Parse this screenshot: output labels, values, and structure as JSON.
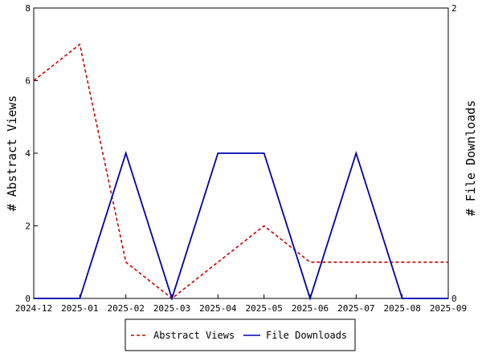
{
  "chart_data": {
    "type": "line",
    "x": [
      "2024-12",
      "2025-01",
      "2025-02",
      "2025-03",
      "2025-04",
      "2025-05",
      "2025-06",
      "2025-07",
      "2025-08",
      "2025-09"
    ],
    "xlabel": "",
    "y_left": {
      "label": "# Abstract Views",
      "ylim": [
        0,
        8
      ],
      "ticks": [
        "0",
        "2",
        "4",
        "6",
        "8"
      ]
    },
    "y_right": {
      "label": "# File Downloads",
      "ylim": [
        0,
        2
      ],
      "ticks": [
        "0",
        "2"
      ]
    },
    "series": [
      {
        "name": "Abstract Views",
        "axis": "left",
        "color": "#cc0000",
        "style": "dashed",
        "values": [
          6,
          7,
          1,
          0,
          1,
          2,
          1,
          1,
          1,
          1
        ]
      },
      {
        "name": "File Downloads",
        "axis": "right",
        "color": "#0000aa",
        "style": "solid",
        "values": [
          0,
          0,
          1,
          0,
          1,
          1,
          0,
          1,
          0,
          0
        ]
      }
    ],
    "grid": false,
    "legend_position": "bottom"
  }
}
